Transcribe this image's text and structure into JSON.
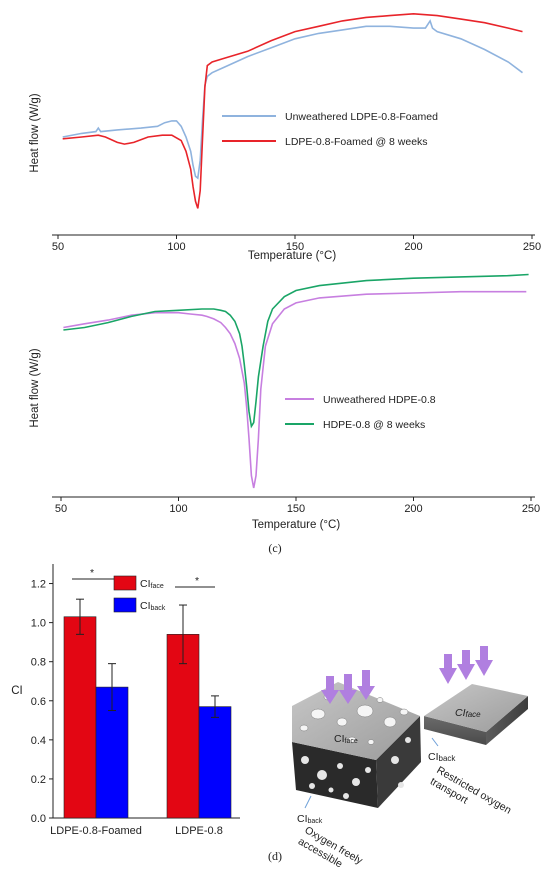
{
  "chart_data": [
    {
      "type": "line",
      "xlabel": "Temperature (°C)",
      "ylabel": "Heat flow (W/g)",
      "xlim": [
        50,
        250
      ],
      "xticks": [
        50,
        100,
        150,
        200,
        250
      ],
      "series": [
        {
          "name": "Unweathered LDPE-0.8-Foamed",
          "color": "#8fb3de",
          "x": [
            52,
            60,
            66,
            67,
            68,
            75,
            85,
            92,
            95,
            98,
            100,
            102,
            104,
            106,
            107,
            108,
            109,
            110,
            111,
            112,
            113,
            115,
            120,
            130,
            140,
            150,
            160,
            170,
            180,
            190,
            200,
            205,
            207,
            208,
            209,
            210,
            220,
            230,
            240,
            246
          ],
          "y": [
            0.3,
            0.32,
            0.33,
            0.35,
            0.33,
            0.34,
            0.35,
            0.36,
            0.38,
            0.39,
            0.39,
            0.36,
            0.3,
            0.22,
            0.14,
            0.08,
            0.07,
            0.17,
            0.4,
            0.59,
            0.64,
            0.66,
            0.69,
            0.75,
            0.8,
            0.85,
            0.88,
            0.9,
            0.92,
            0.92,
            0.91,
            0.91,
            0.95,
            0.91,
            0.9,
            0.89,
            0.85,
            0.79,
            0.72,
            0.66
          ]
        },
        {
          "name": "LDPE-0.8-Foamed @ 8 weeks",
          "color": "#e8242a",
          "x": [
            52,
            60,
            67,
            70,
            75,
            78,
            82,
            88,
            94,
            98,
            102,
            104,
            106,
            107,
            108,
            109,
            110,
            111,
            112,
            113,
            115,
            120,
            130,
            140,
            150,
            160,
            170,
            180,
            190,
            200,
            210,
            220,
            230,
            240,
            246
          ],
          "y": [
            0.29,
            0.3,
            0.31,
            0.3,
            0.27,
            0.26,
            0.27,
            0.3,
            0.31,
            0.31,
            0.28,
            0.22,
            0.12,
            0.02,
            -0.06,
            -0.1,
            0.0,
            0.3,
            0.58,
            0.7,
            0.72,
            0.74,
            0.78,
            0.84,
            0.89,
            0.92,
            0.95,
            0.97,
            0.98,
            0.99,
            0.98,
            0.96,
            0.94,
            0.91,
            0.89
          ]
        }
      ]
    },
    {
      "type": "line",
      "xlabel": "Temperature (°C)",
      "ylabel": "Heat flow (W/g)",
      "xlim": [
        50,
        250
      ],
      "xticks": [
        50,
        100,
        150,
        200,
        250
      ],
      "series": [
        {
          "name": "Unweathered  HDPE-0.8",
          "color": "#c77fe0",
          "x": [
            51,
            60,
            70,
            80,
            90,
            100,
            105,
            110,
            112,
            115,
            118,
            120,
            122,
            124,
            126,
            128,
            129,
            130,
            131,
            132,
            133,
            134,
            135,
            137,
            140,
            145,
            150,
            160,
            180,
            200,
            220,
            240,
            248
          ],
          "y": [
            0.3,
            0.33,
            0.36,
            0.4,
            0.42,
            0.42,
            0.41,
            0.4,
            0.39,
            0.37,
            0.34,
            0.3,
            0.25,
            0.17,
            0.05,
            -0.15,
            -0.35,
            -0.6,
            -0.9,
            -1.0,
            -0.9,
            -0.6,
            -0.2,
            0.15,
            0.33,
            0.45,
            0.5,
            0.54,
            0.57,
            0.58,
            0.59,
            0.59,
            0.59
          ]
        },
        {
          "name": "HDPE-0.8 @ 8 weeks",
          "color": "#1aa567",
          "x": [
            51,
            60,
            70,
            80,
            90,
            100,
            110,
            115,
            118,
            120,
            122,
            124,
            126,
            127,
            128,
            129,
            130,
            131,
            132,
            133,
            134,
            136,
            138,
            140,
            145,
            150,
            160,
            180,
            200,
            220,
            240,
            249
          ],
          "y": [
            0.28,
            0.3,
            0.34,
            0.39,
            0.43,
            0.44,
            0.45,
            0.45,
            0.44,
            0.43,
            0.4,
            0.35,
            0.25,
            0.15,
            0.0,
            -0.18,
            -0.38,
            -0.5,
            -0.47,
            -0.3,
            -0.1,
            0.15,
            0.35,
            0.45,
            0.55,
            0.6,
            0.64,
            0.68,
            0.7,
            0.71,
            0.72,
            0.73
          ]
        }
      ]
    },
    {
      "type": "bar",
      "categories": [
        "LDPE-0.8-Foamed",
        "LDPE-0.8"
      ],
      "ylabel": "CI",
      "ylim": [
        0.0,
        1.3
      ],
      "yticks": [
        "0.0",
        "0.2",
        "0.4",
        "0.6",
        "0.8",
        "1.0",
        "1.2"
      ],
      "significance": "*",
      "series": [
        {
          "name": "CIface",
          "color": "#e30613",
          "values": [
            1.03,
            0.94
          ],
          "errors": [
            0.09,
            0.15
          ]
        },
        {
          "name": "CIback",
          "color": "#0000ff",
          "values": [
            0.67,
            0.57
          ],
          "errors": [
            0.12,
            0.055
          ]
        }
      ]
    }
  ],
  "panel_labels": {
    "c": "(c)",
    "d": "(d)"
  },
  "legend_d": {
    "face": [
      "CI",
      "face"
    ],
    "back": [
      "CI",
      "back"
    ]
  },
  "diagram": {
    "left_face": [
      "CI",
      "face"
    ],
    "left_back": [
      "CI",
      "back"
    ],
    "left_caption": [
      "Oxygen freely",
      "accessible"
    ],
    "right_face": [
      "CI",
      "face"
    ],
    "right_back": [
      "CI",
      "back"
    ],
    "right_caption": [
      "Restricted oxygen",
      "transport"
    ],
    "arrow_color": "#b07fe0"
  }
}
